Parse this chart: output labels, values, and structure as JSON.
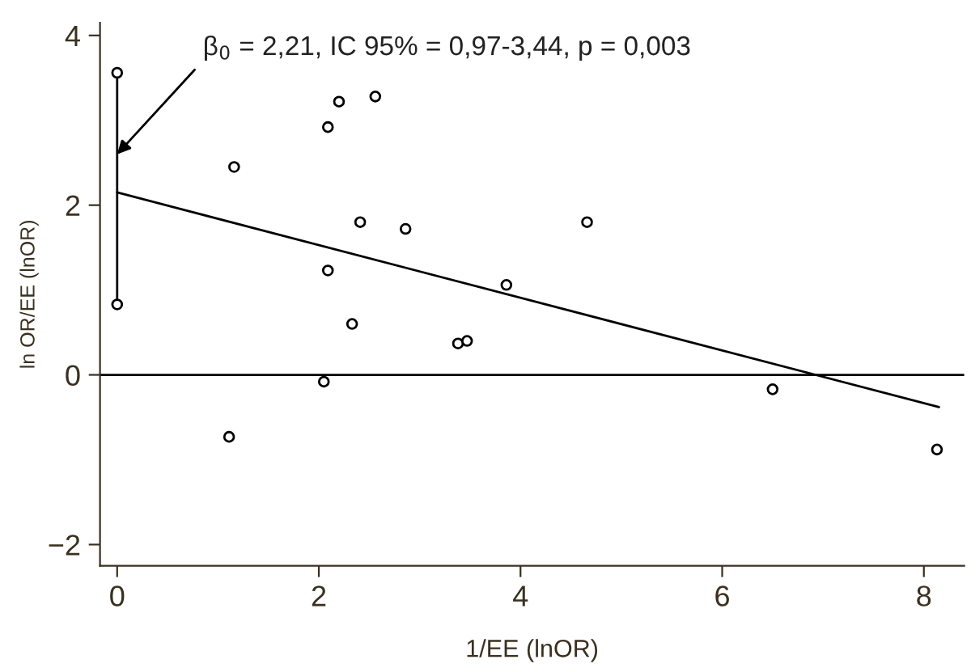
{
  "chart_data": {
    "type": "scatter",
    "xlabel": "1/EE (lnOR)",
    "ylabel": "ln OR/EE (lnOR)",
    "xlim": [
      -0.17,
      8.4
    ],
    "ylim": [
      -2.25,
      4.15
    ],
    "xticks": [
      0,
      2,
      4,
      6,
      8
    ],
    "yticks": [
      {
        "value": -2,
        "label": "−2"
      },
      0,
      2,
      4
    ],
    "grid": false,
    "marker": "circle",
    "series": [
      {
        "color": "#000000",
        "x": [
          0,
          0,
          1.16,
          1.11,
          2.09,
          2.2,
          2.56,
          2.41,
          2.09,
          2.33,
          2.05,
          2.86,
          3.38,
          3.47,
          3.86,
          4.66,
          6.5,
          8.13
        ],
        "values": [
          3.56,
          0.83,
          2.45,
          -0.73,
          2.92,
          3.22,
          3.28,
          1.8,
          1.23,
          0.6,
          -0.08,
          1.72,
          0.37,
          0.4,
          1.06,
          1.8,
          -0.17,
          -0.88
        ]
      },
      {
        "type": "line",
        "color": "#000000",
        "marker": "none",
        "x": [
          0,
          0
        ],
        "values": [
          0.83,
          3.56
        ]
      },
      {
        "type": "line",
        "color": "#000000",
        "marker": "none",
        "x": [
          0,
          8.15
        ],
        "values": [
          2.15,
          -0.38
        ]
      }
    ],
    "ref_lines": [
      {
        "axis": "y",
        "value": 0,
        "color": "#000000"
      }
    ],
    "annotations": [
      {
        "text": "β$_{0}$ = 2,21, IC 95% = 0,97-3,44, p = 0,003",
        "x": 0,
        "y": 2.6
      }
    ]
  }
}
